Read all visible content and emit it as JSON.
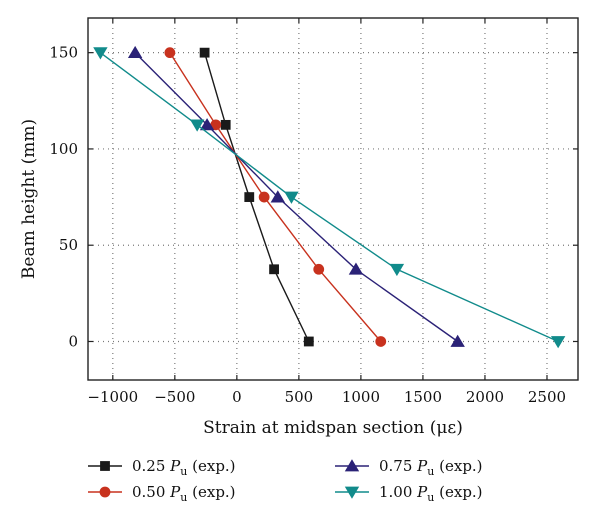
{
  "chart_data": {
    "type": "line",
    "xlabel": "Strain at midspan section (με)",
    "ylabel": "Beam height (mm)",
    "xlim": [
      -1200,
      2750
    ],
    "ylim": [
      -20,
      168
    ],
    "xticks": [
      -1000,
      -500,
      0,
      500,
      1000,
      1500,
      2000,
      2500
    ],
    "yticks": [
      0,
      50,
      100,
      150
    ],
    "grid": true,
    "legend_position": "bottom",
    "series": [
      {
        "name": "0.25 Pu (exp.)",
        "name_parts": {
          "coef": "0.25",
          "sym": "P",
          "sub": "u",
          "suffix": "(exp.)"
        },
        "color": "#1a1a1a",
        "marker": "square",
        "points": [
          [
            -260,
            150
          ],
          [
            -90,
            112.5
          ],
          [
            100,
            75
          ],
          [
            300,
            37.5
          ],
          [
            580,
            0
          ]
        ]
      },
      {
        "name": "0.50 Pu (exp.)",
        "name_parts": {
          "coef": "0.50",
          "sym": "P",
          "sub": "u",
          "suffix": "(exp.)"
        },
        "color": "#c8321e",
        "marker": "circle",
        "points": [
          [
            -540,
            150
          ],
          [
            -170,
            112.5
          ],
          [
            220,
            75
          ],
          [
            660,
            37.5
          ],
          [
            1160,
            0
          ]
        ]
      },
      {
        "name": "0.75 Pu (exp.)",
        "name_parts": {
          "coef": "0.75",
          "sym": "P",
          "sub": "u",
          "suffix": "(exp.)"
        },
        "color": "#2b2277",
        "marker": "triangle-up",
        "points": [
          [
            -820,
            150
          ],
          [
            -240,
            112.5
          ],
          [
            330,
            75
          ],
          [
            960,
            37.5
          ],
          [
            1780,
            0
          ]
        ]
      },
      {
        "name": "1.00 Pu (exp.)",
        "name_parts": {
          "coef": "1.00",
          "sym": "P",
          "sub": "u",
          "suffix": "(exp.)"
        },
        "color": "#118b8b",
        "marker": "triangle-down",
        "points": [
          [
            -1100,
            150
          ],
          [
            -320,
            112.5
          ],
          [
            440,
            75
          ],
          [
            1290,
            37.5
          ],
          [
            2590,
            0
          ]
        ]
      }
    ]
  }
}
